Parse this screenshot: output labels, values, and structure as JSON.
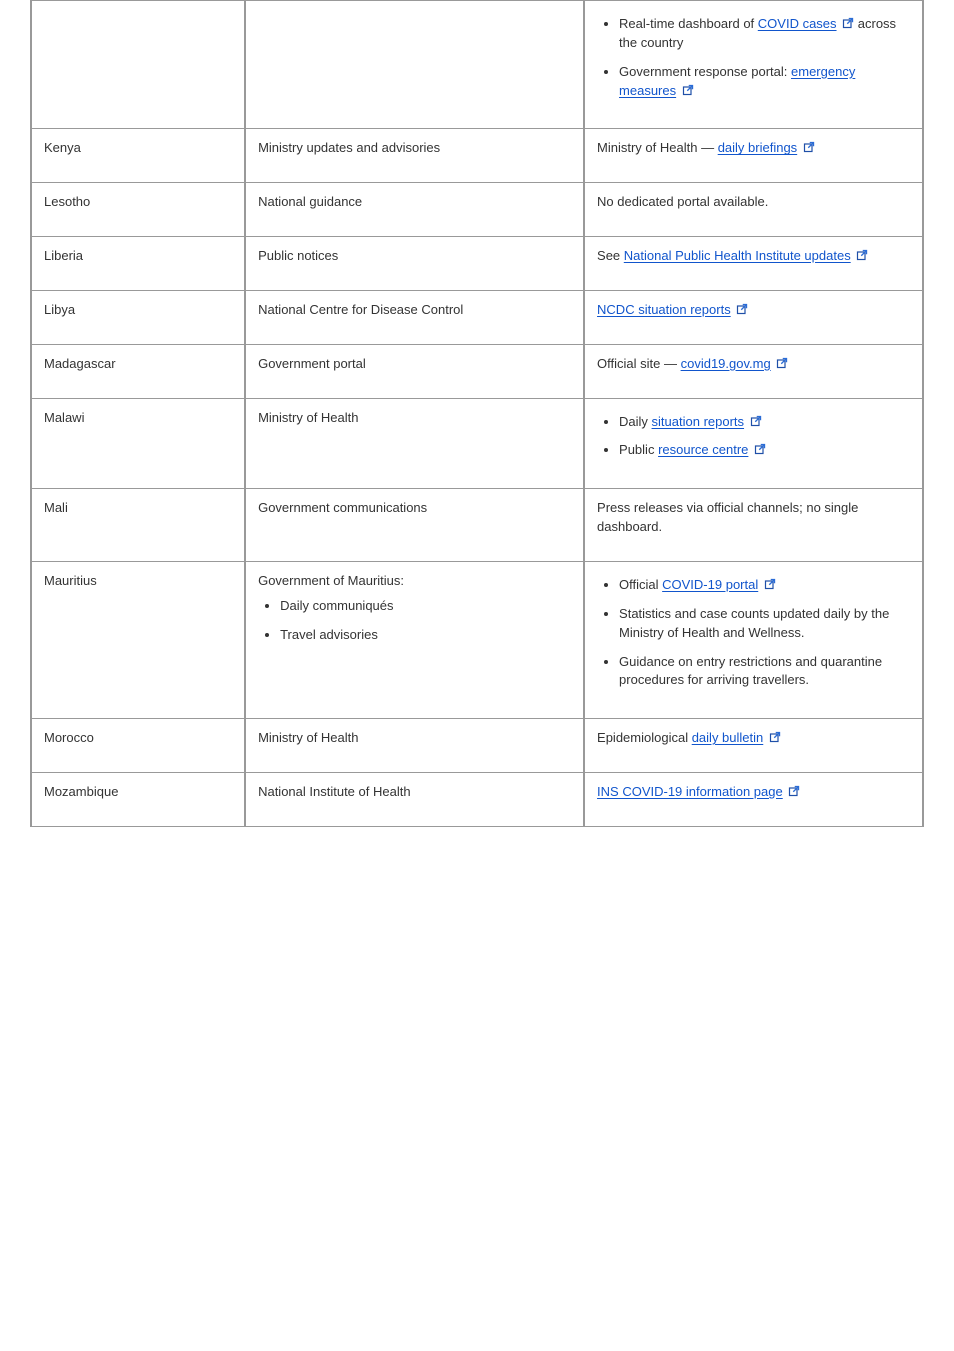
{
  "colors": {
    "link": "#1155cc",
    "border": "#999999",
    "text": "#333333",
    "iconFill": "#2a6cd6",
    "iconStroke": "#1f4fa8"
  },
  "extIconTitle": "external link",
  "columnWidths": [
    "24%",
    "38%",
    "38%"
  ],
  "rows": [
    {
      "c1": "",
      "c2": "",
      "c3_items": [
        {
          "type": "bullet",
          "segments": [
            {
              "t": "text",
              "v": "Real-time dashboard of "
            },
            {
              "t": "link",
              "v": "COVID cases",
              "ext": true
            },
            {
              "t": "text",
              "v": " across the country"
            }
          ]
        },
        {
          "type": "bullet",
          "segments": [
            {
              "t": "text",
              "v": "Government response portal: "
            },
            {
              "t": "link",
              "v": "emergency measures",
              "ext": true
            }
          ]
        }
      ]
    },
    {
      "c1": "Kenya",
      "c2": "Ministry updates and advisories",
      "c3_items": [
        {
          "type": "line",
          "segments": [
            {
              "t": "text",
              "v": "Ministry of Health — "
            },
            {
              "t": "link",
              "v": "daily briefings",
              "ext": true
            }
          ]
        }
      ]
    },
    {
      "c1": "Lesotho",
      "c2": "National guidance",
      "c3_items": [
        {
          "type": "line",
          "segments": [
            {
              "t": "text",
              "v": "No dedicated portal available."
            }
          ]
        }
      ]
    },
    {
      "c1": "Liberia",
      "c2": "Public notices",
      "c3_items": [
        {
          "type": "line",
          "segments": [
            {
              "t": "text",
              "v": "See "
            },
            {
              "t": "link",
              "v": "National Public Health Institute updates",
              "ext": true
            }
          ]
        }
      ]
    },
    {
      "c1": "Libya",
      "c2": "National Centre for Disease Control",
      "c3_items": [
        {
          "type": "line",
          "segments": [
            {
              "t": "link",
              "v": "NCDC situation reports",
              "ext": true
            }
          ]
        }
      ]
    },
    {
      "c1": "Madagascar",
      "c2": "Government portal",
      "c3_items": [
        {
          "type": "line",
          "segments": [
            {
              "t": "text",
              "v": "Official site — "
            },
            {
              "t": "link",
              "v": "covid19.gov.mg",
              "ext": true
            }
          ]
        }
      ]
    },
    {
      "c1": "Malawi",
      "c2": "Ministry of Health",
      "c3_items": [
        {
          "type": "bullet",
          "segments": [
            {
              "t": "text",
              "v": "Daily "
            },
            {
              "t": "link",
              "v": "situation reports",
              "ext": true
            }
          ]
        },
        {
          "type": "bullet",
          "segments": [
            {
              "t": "text",
              "v": "Public "
            },
            {
              "t": "link",
              "v": "resource centre",
              "ext": true
            }
          ]
        }
      ]
    },
    {
      "c1": "Mali",
      "c2": "Government communications",
      "c3_items": [
        {
          "type": "line",
          "segments": [
            {
              "t": "text",
              "v": "Press releases via official channels; no single dashboard."
            }
          ]
        }
      ]
    },
    {
      "c1": "Mauritius",
      "c2_items": [
        {
          "type": "line",
          "segments": [
            {
              "t": "text",
              "v": "Government of Mauritius:"
            }
          ]
        },
        {
          "type": "bullet",
          "segments": [
            {
              "t": "text",
              "v": "Daily communiqués"
            }
          ]
        },
        {
          "type": "bullet",
          "segments": [
            {
              "t": "text",
              "v": "Travel advisories"
            }
          ]
        }
      ],
      "c3_items": [
        {
          "type": "bullet",
          "segments": [
            {
              "t": "text",
              "v": "Official "
            },
            {
              "t": "link",
              "v": "COVID-19 portal",
              "ext": true
            }
          ]
        },
        {
          "type": "bullet",
          "segments": [
            {
              "t": "text",
              "v": "Statistics and case counts updated daily by the Ministry of Health and Wellness."
            }
          ]
        },
        {
          "type": "bullet",
          "segments": [
            {
              "t": "text",
              "v": "Guidance on entry restrictions and quarantine procedures for arriving travellers."
            }
          ]
        }
      ]
    },
    {
      "c1": "Morocco",
      "c2": "Ministry of Health",
      "c3_items": [
        {
          "type": "line",
          "segments": [
            {
              "t": "text",
              "v": "Epidemiological "
            },
            {
              "t": "link",
              "v": "daily bulletin",
              "ext": true
            }
          ]
        }
      ]
    },
    {
      "c1": "Mozambique",
      "c2": "National Institute of Health",
      "c3_items": [
        {
          "type": "line",
          "segments": [
            {
              "t": "link",
              "v": "INS COVID-19 information page",
              "ext": true
            }
          ]
        }
      ]
    }
  ]
}
